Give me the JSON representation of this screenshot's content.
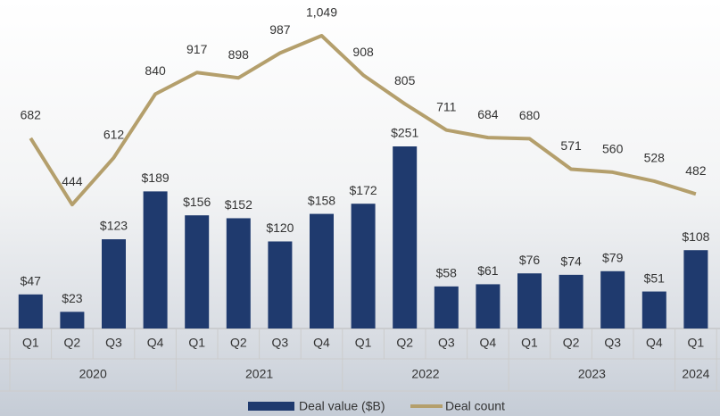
{
  "chart_data": {
    "type": "bar-line",
    "categories": [
      "Q1",
      "Q2",
      "Q3",
      "Q4",
      "Q1",
      "Q2",
      "Q3",
      "Q4",
      "Q1",
      "Q2",
      "Q3",
      "Q4",
      "Q1",
      "Q2",
      "Q3",
      "Q4",
      "Q1"
    ],
    "x_groups": [
      "2020",
      "2021",
      "2022",
      "2023",
      "2024"
    ],
    "series": [
      {
        "name": "Deal value ($B)",
        "color": "#1f3a6e",
        "type": "bar",
        "values": [
          47,
          23,
          123,
          189,
          156,
          152,
          120,
          158,
          172,
          251,
          58,
          61,
          76,
          74,
          79,
          51,
          108
        ],
        "value_labels": [
          "$47",
          "$23",
          "$123",
          "$189",
          "$156",
          "$152",
          "$120",
          "$158",
          "$172",
          "$251",
          "$58",
          "$61",
          "$76",
          "$74",
          "$79",
          "$51",
          "$108"
        ]
      },
      {
        "name": "Deal count",
        "color": "#b49f6c",
        "type": "line",
        "axis": "y2",
        "values": [
          682,
          444,
          612,
          840,
          917,
          898,
          987,
          1049,
          908,
          805,
          711,
          684,
          680,
          571,
          560,
          528,
          482
        ],
        "value_labels": [
          "682",
          "444",
          "612",
          "840",
          "917",
          "898",
          "987",
          "1,049",
          "908",
          "805",
          "711",
          "684",
          "680",
          "571",
          "560",
          "528",
          "482"
        ]
      }
    ]
  }
}
